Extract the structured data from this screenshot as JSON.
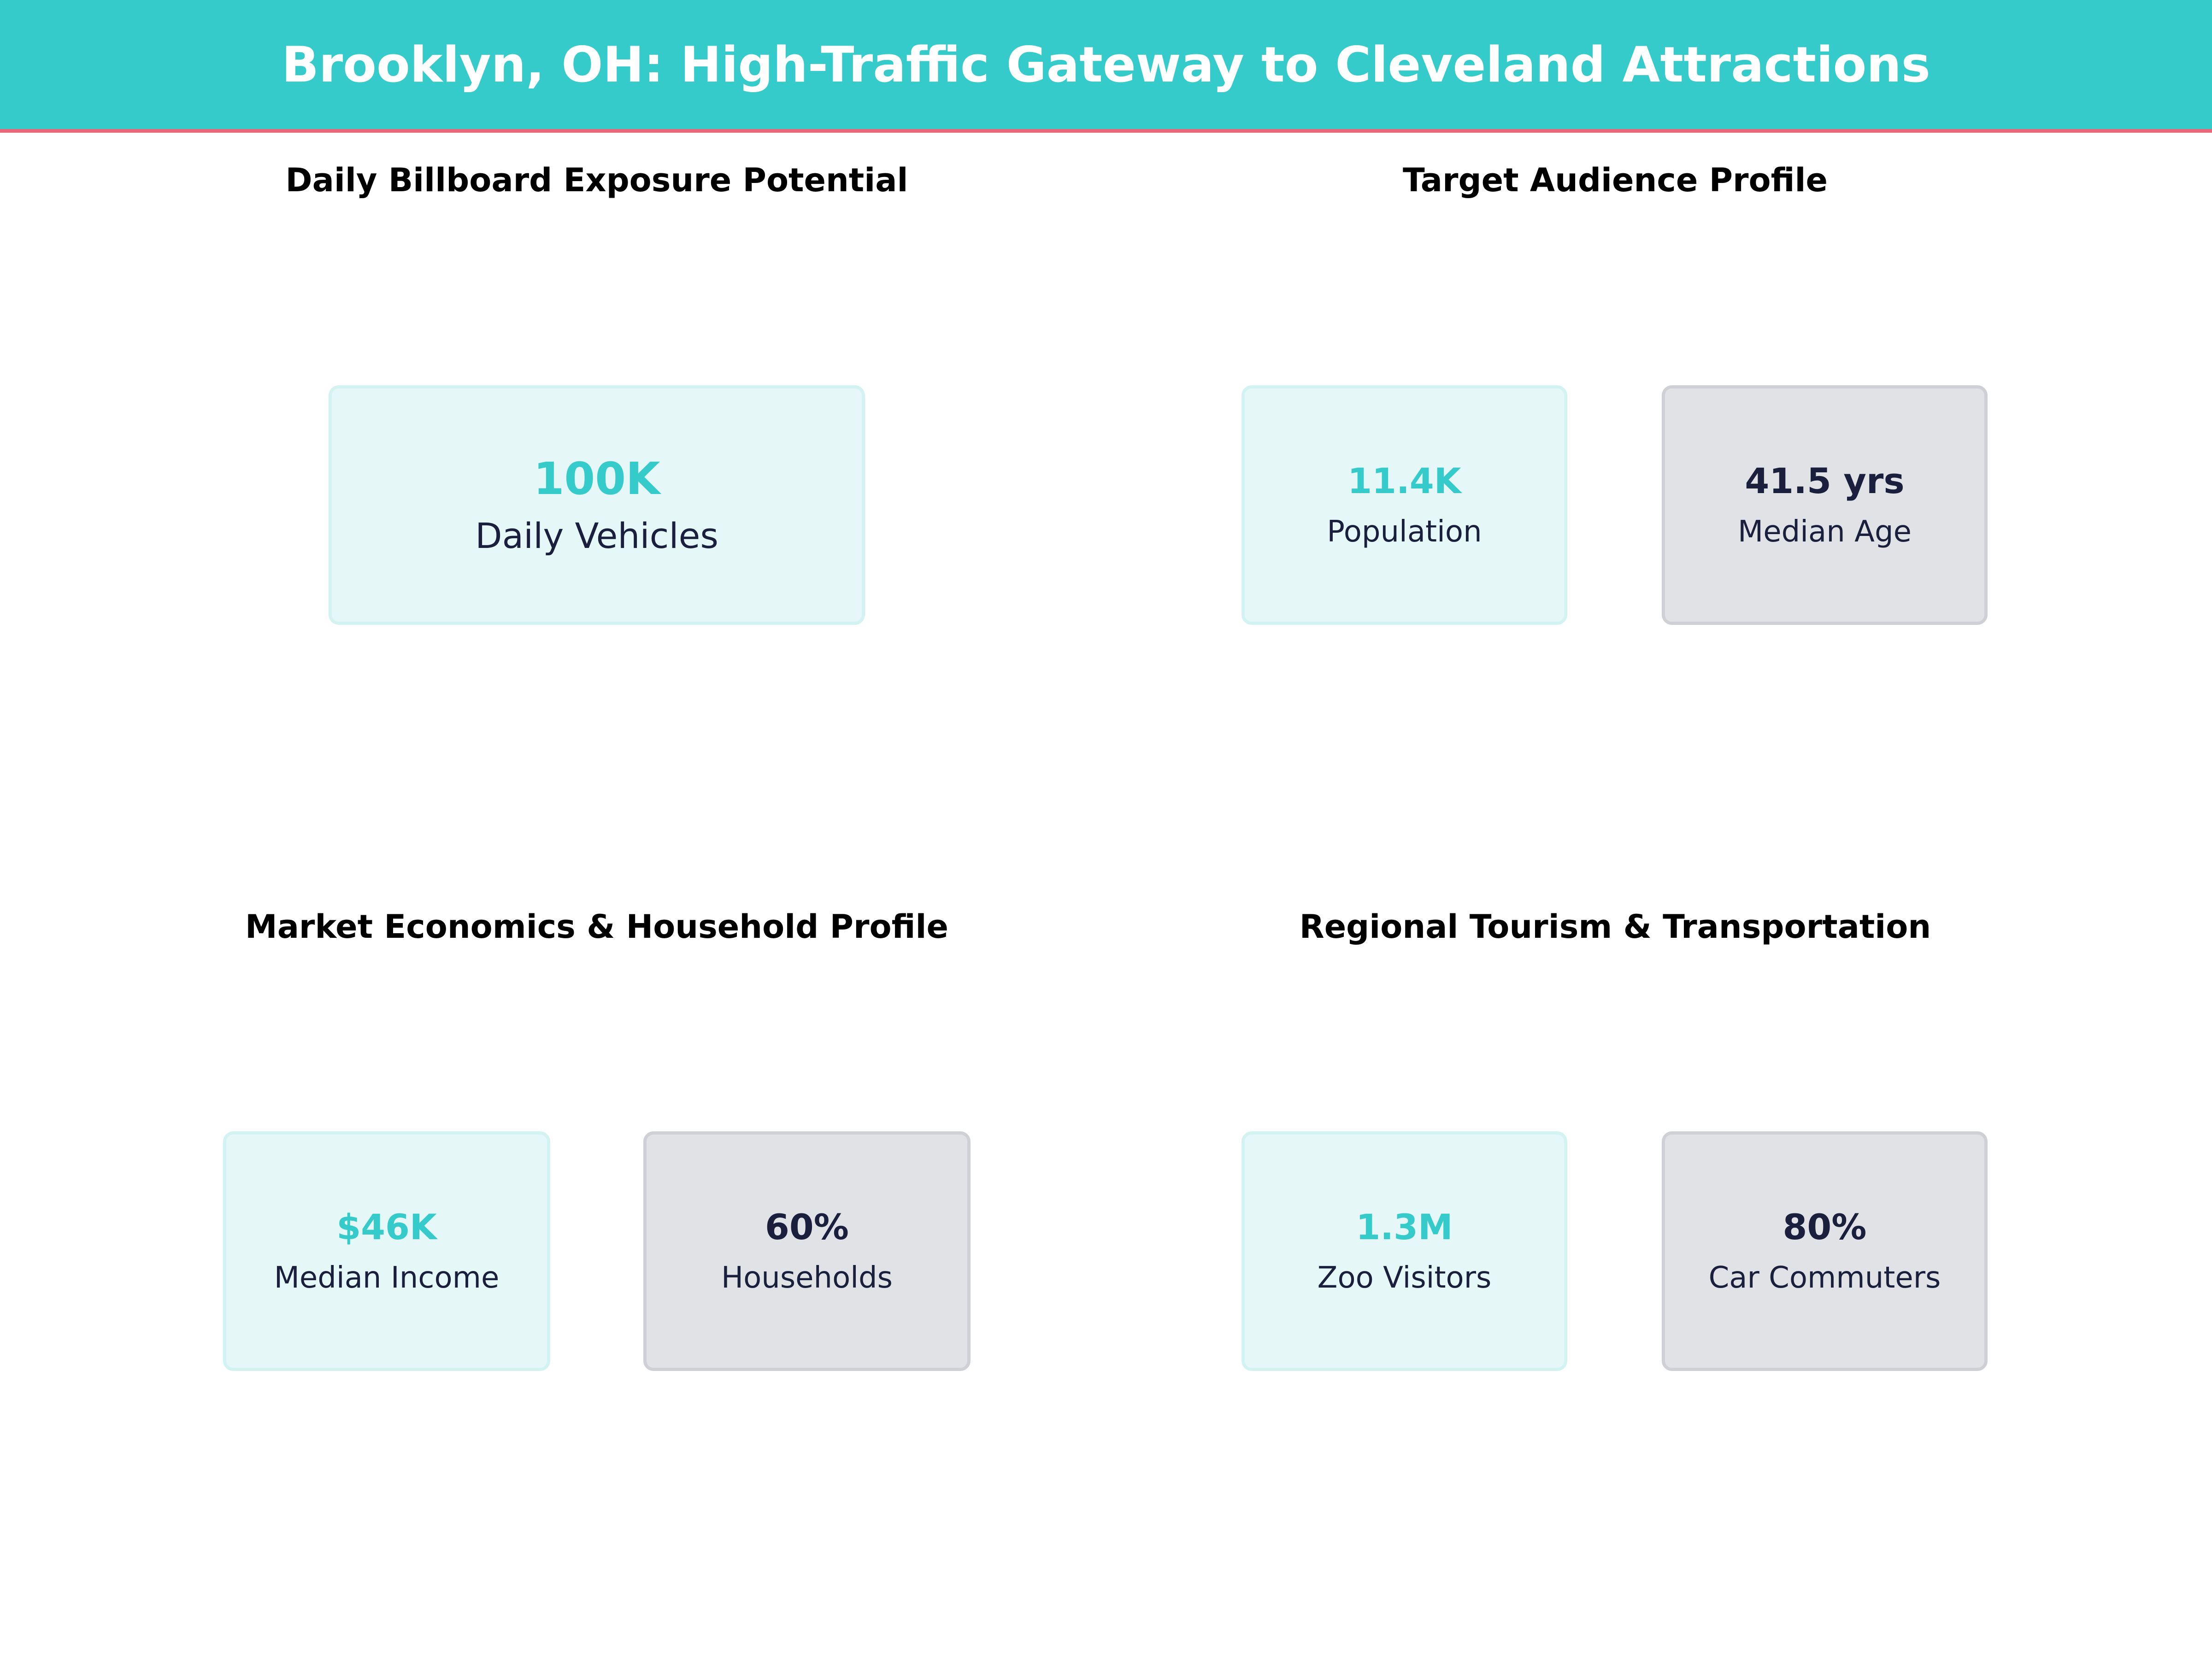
{
  "header": {
    "title": "Brooklyn, OH: High-Traffic Gateway to Cleveland Attractions"
  },
  "colors": {
    "accent": "#36cbcb",
    "header_rule": "#e8687a",
    "dark_text": "#1a1f3d",
    "teal_card_bg": "#e5f7f7",
    "grey_card_bg": "#e1e2e6"
  },
  "panels": [
    {
      "title": "Daily Billboard Exposure Potential",
      "cards": [
        {
          "value": "100K",
          "label": "Daily Vehicles"
        }
      ]
    },
    {
      "title": "Target Audience Profile",
      "cards": [
        {
          "value": "11.4K",
          "label": "Population"
        },
        {
          "value": "41.5 yrs",
          "label": "Median Age"
        }
      ]
    },
    {
      "title": "Market Economics & Household Profile",
      "cards": [
        {
          "value": "$46K",
          "label": "Median Income"
        },
        {
          "value": "60%",
          "label": "Households"
        }
      ]
    },
    {
      "title": "Regional Tourism & Transportation",
      "cards": [
        {
          "value": "1.3M",
          "label": "Zoo Visitors"
        },
        {
          "value": "80%",
          "label": "Car Commuters"
        }
      ]
    }
  ]
}
